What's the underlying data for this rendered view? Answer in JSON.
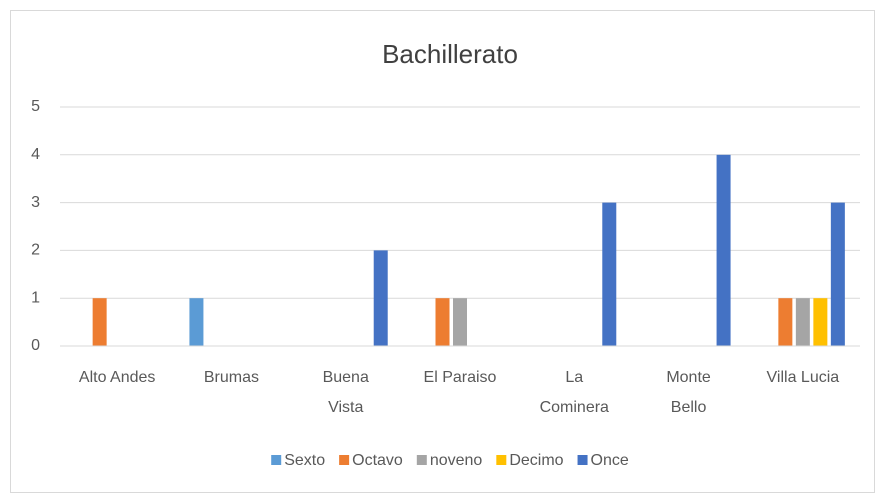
{
  "chart_data": {
    "type": "bar",
    "title": "Bachillerato",
    "categories": [
      "Alto Andes",
      "Brumas",
      "Buena Vista",
      "El Paraiso",
      "La Cominera",
      "Monte Bello",
      "Villa Lucia"
    ],
    "series": [
      {
        "name": "Sexto",
        "color": "#5b9bd5",
        "values": [
          0,
          1,
          0,
          0,
          0,
          0,
          0
        ]
      },
      {
        "name": "Octavo",
        "color": "#ed7d31",
        "values": [
          1,
          0,
          0,
          1,
          0,
          0,
          1
        ]
      },
      {
        "name": "noveno",
        "color": "#a5a5a5",
        "values": [
          0,
          0,
          0,
          1,
          0,
          0,
          1
        ]
      },
      {
        "name": "Decimo",
        "color": "#ffc000",
        "values": [
          0,
          0,
          0,
          0,
          0,
          0,
          1
        ]
      },
      {
        "name": "Once",
        "color": "#4472c4",
        "values": [
          0,
          0,
          2,
          0,
          3,
          4,
          3
        ]
      }
    ],
    "ylim": [
      0,
      5
    ],
    "yticks": [
      0,
      1,
      2,
      3,
      4,
      5
    ],
    "grid": true,
    "legend": "bottom"
  }
}
